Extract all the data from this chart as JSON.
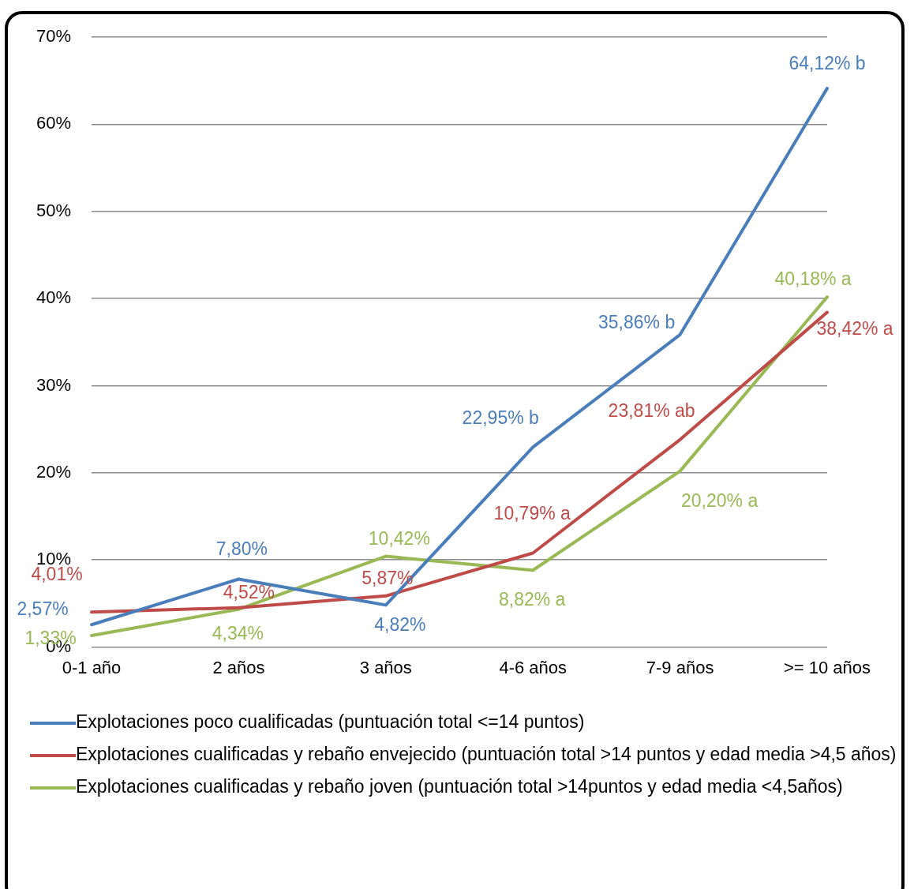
{
  "chart_data": {
    "type": "line",
    "categories": [
      "0-1 año",
      "2 años",
      "3 años",
      "4-6 años",
      "7-9 años",
      ">= 10 años"
    ],
    "series": [
      {
        "name": "Explotaciones poco cualificadas (puntuación total <=14 puntos)",
        "color": "#4a7ebb",
        "values": [
          2.57,
          7.8,
          4.82,
          22.95,
          35.86,
          64.12
        ],
        "value_labels": [
          "2,57%",
          "7,80%",
          "4,82%",
          "22,95% b",
          "35,86% b",
          "64,12% b"
        ]
      },
      {
        "name": "Explotaciones cualificadas y rebaño envejecido (puntuación total >14 puntos y edad media >4,5 años)",
        "color": "#be4b48",
        "values": [
          4.01,
          4.52,
          5.87,
          10.79,
          23.81,
          38.42
        ],
        "value_labels": [
          "4,01%",
          "4,52%",
          "5,87%",
          "10,79% a",
          "23,81% ab",
          "38,42% a"
        ]
      },
      {
        "name": "Explotaciones cualificadas y rebaño joven (puntuación total >14puntos y edad media <4,5años)",
        "color": "#98b954",
        "values": [
          1.33,
          4.34,
          10.42,
          8.82,
          20.2,
          40.18
        ],
        "value_labels": [
          "1,33%",
          "4,34%",
          "10,42%",
          "8,82% a",
          "20,20% a",
          "40,18% a"
        ]
      }
    ],
    "ylim": [
      0,
      70
    ],
    "yticks": [
      {
        "value": 0,
        "label": "0%"
      },
      {
        "value": 10,
        "label": "10%"
      },
      {
        "value": 20,
        "label": "20%"
      },
      {
        "value": 30,
        "label": "30%"
      },
      {
        "value": 40,
        "label": "40%"
      },
      {
        "value": 50,
        "label": "50%"
      },
      {
        "value": 60,
        "label": "60%"
      },
      {
        "value": 70,
        "label": "70%"
      }
    ],
    "grid": "y",
    "legend": "bottom",
    "marker": "none",
    "line_style": "solid"
  }
}
